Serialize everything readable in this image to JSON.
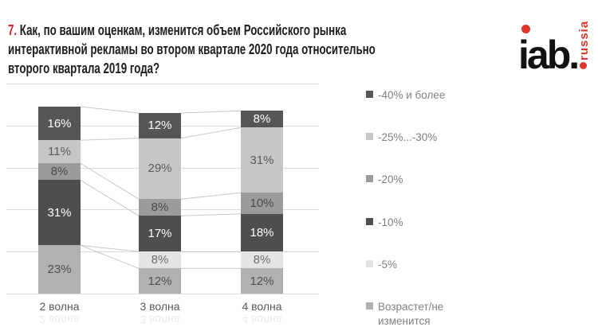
{
  "header": {
    "number": "7.",
    "line1": "Как, по вашим оценкам, изменится объем Российского рынка",
    "line2": "интерактивной рекламы во втором квартале 2020 года относительно",
    "line3": "второго квартала 2019 года?"
  },
  "logo": {
    "wordmark": "iab.",
    "region": "russia",
    "red": "#e0352b",
    "black": "#121212"
  },
  "chart_data": {
    "type": "bar",
    "stacked": true,
    "categories": [
      "2 волна",
      "3 волна",
      "4 волна"
    ],
    "series": [
      {
        "name": "-40% и более",
        "color": "#565656",
        "label_color": "#ffffff",
        "values": [
          16,
          12,
          8
        ]
      },
      {
        "name": "-25%...-30%",
        "color": "#c6c6c6",
        "label_color": "#595959",
        "values": [
          11,
          29,
          31
        ]
      },
      {
        "name": "-20%",
        "color": "#9b9b9b",
        "label_color": "#4a4a4a",
        "values": [
          8,
          8,
          10
        ]
      },
      {
        "name": "-10%",
        "color": "#4e4e4e",
        "label_color": "#ffffff",
        "values": [
          31,
          17,
          18
        ]
      },
      {
        "name": "-5%",
        "color": "#e4e4e4",
        "label_color": "#6e6e6e",
        "values": [
          0,
          8,
          8
        ]
      },
      {
        "name": "Возрастет/не изменится",
        "color": "#b1b1b1",
        "label_color": "#4f4f4f",
        "values": [
          23,
          12,
          12
        ]
      }
    ],
    "value_unit": "%",
    "axis": {
      "min": 0,
      "max": 100,
      "gridline_step": 20,
      "gridlines_visible": true
    },
    "legend_position": "right",
    "data_labels": "inside"
  },
  "colors": {
    "accent_red": "#d42323",
    "gridline": "#dcdcdc",
    "connector_line": "#c8c8c8",
    "category_label": "#595959",
    "legend_text": "#808080"
  }
}
